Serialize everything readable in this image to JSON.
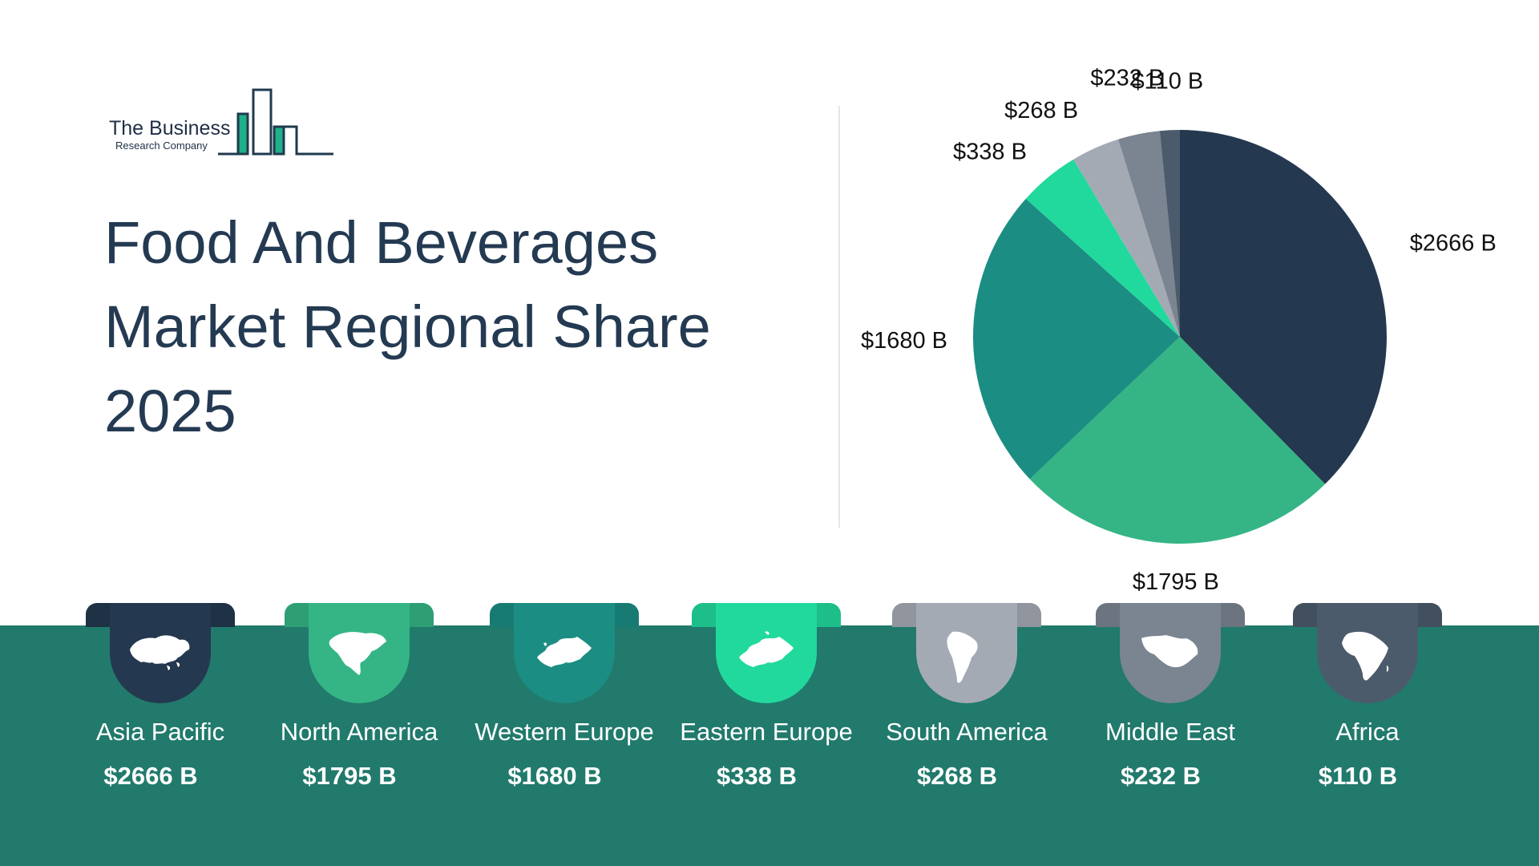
{
  "logo": {
    "line1": "The Business",
    "line2": "Research Company"
  },
  "title_lines": [
    "Food And Beverages",
    "Market Regional Share",
    "2025"
  ],
  "colors": {
    "band": "#217a6c",
    "title": "#243a52"
  },
  "chart_data": {
    "type": "pie",
    "title": "Food And Beverages Market Regional Share 2025",
    "unit": "$ B",
    "categories": [
      "Asia Pacific",
      "North America",
      "Western Europe",
      "Eastern Europe",
      "South America",
      "Middle East",
      "Africa"
    ],
    "values": [
      2666,
      1795,
      1680,
      338,
      268,
      232,
      110
    ],
    "labels": [
      "$2666 B",
      "$1795 B",
      "$1680 B",
      "$338 B",
      "$268 B",
      "$232 B",
      "$110 B"
    ],
    "colors": [
      "#24384f",
      "#35b585",
      "#1c8d83",
      "#21d99c",
      "#a4aab4",
      "#7b8591",
      "#4c5b6c"
    ],
    "start_angle_deg": 0,
    "direction": "clockwise",
    "legend": "bottom"
  },
  "regions": [
    {
      "name": "Asia Pacific",
      "value": "$2666 B",
      "icon": "asia-map-icon"
    },
    {
      "name": "North America",
      "value": "$1795 B",
      "icon": "north-america-map-icon"
    },
    {
      "name": "Western Europe",
      "value": "$1680 B",
      "icon": "western-europe-map-icon"
    },
    {
      "name": "Eastern Europe",
      "value": "$338 B",
      "icon": "eastern-europe-map-icon"
    },
    {
      "name": "South America",
      "value": "$268 B",
      "icon": "south-america-map-icon"
    },
    {
      "name": "Middle East",
      "value": "$232 B",
      "icon": "middle-east-map-icon"
    },
    {
      "name": "Africa",
      "value": "$110 B",
      "icon": "africa-map-icon"
    }
  ]
}
